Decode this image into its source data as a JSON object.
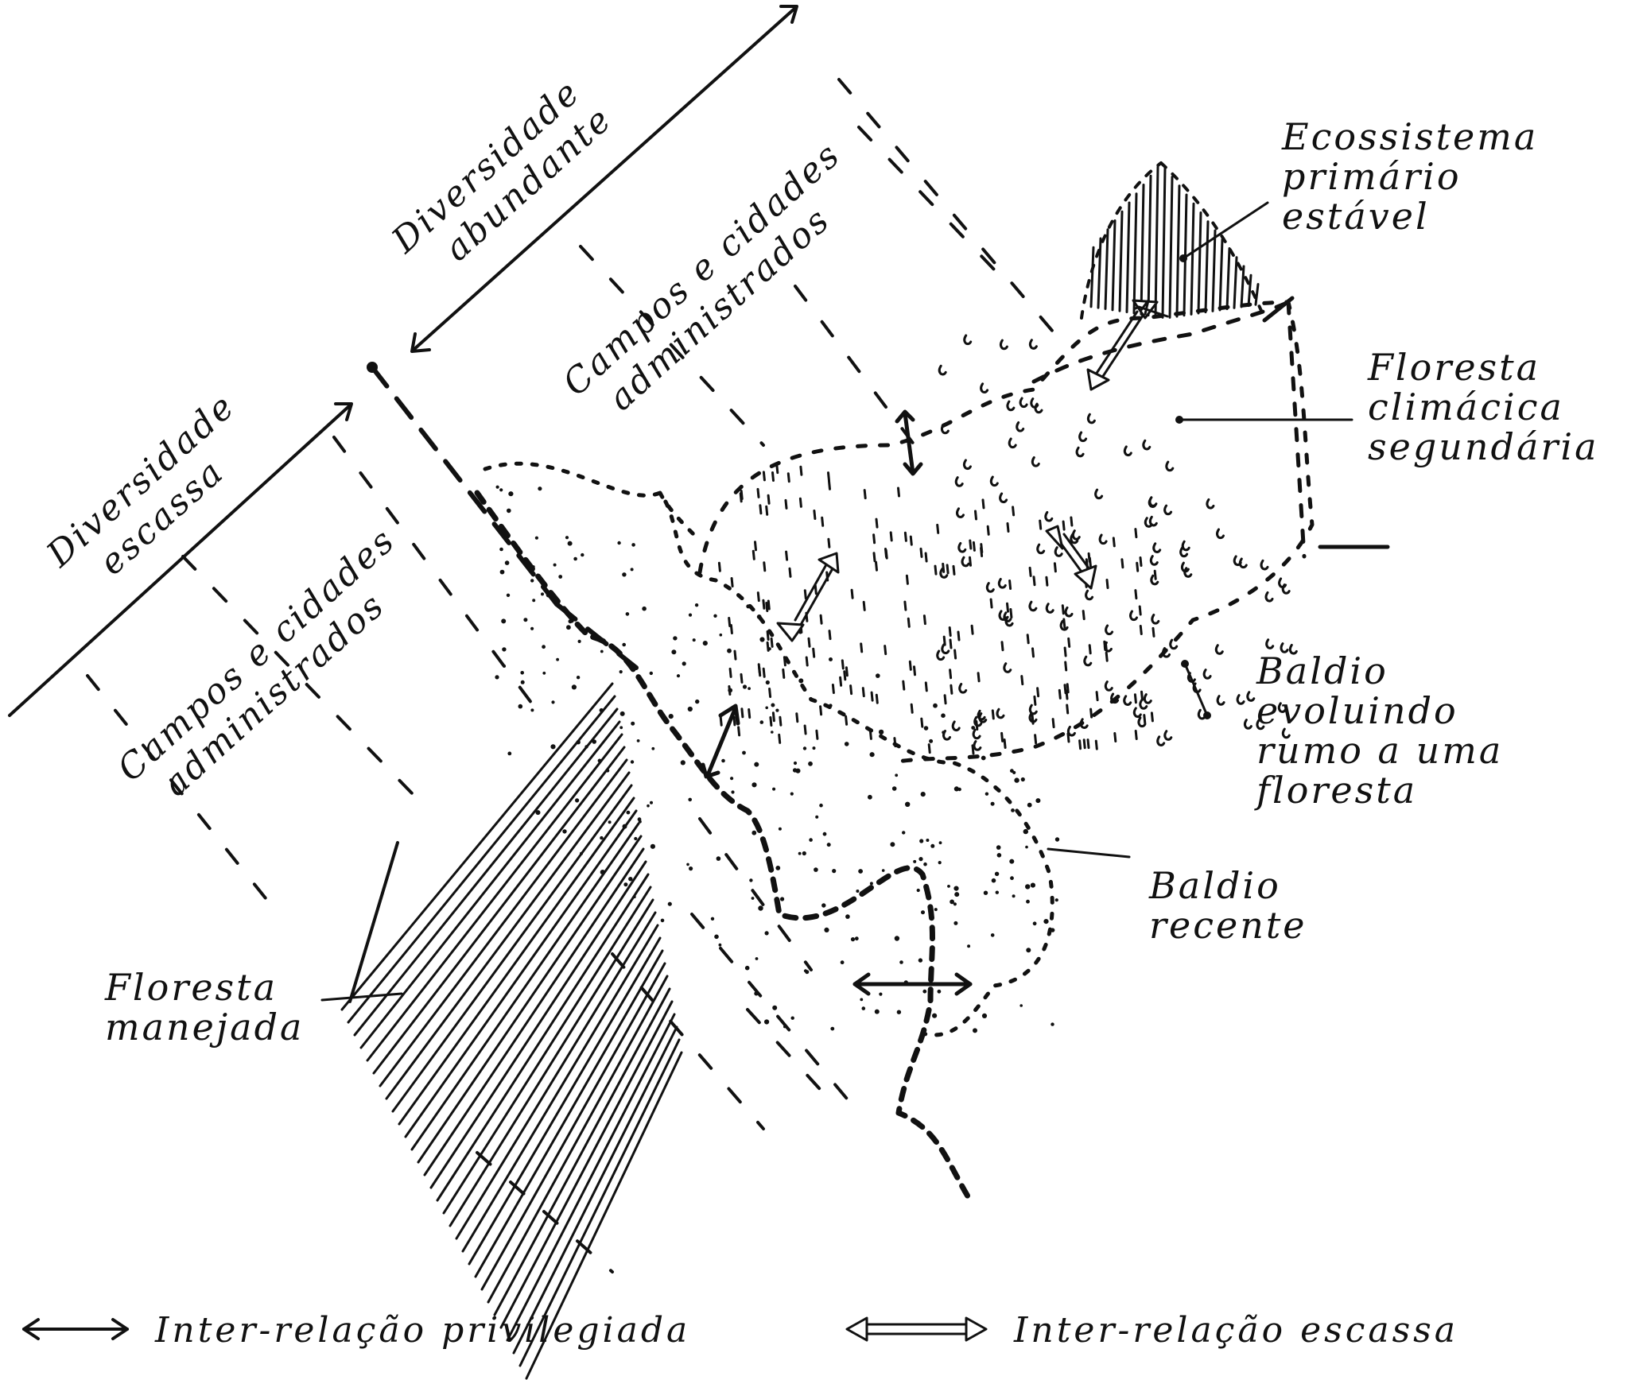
{
  "axes": {
    "diversity_high": [
      "Diversidade",
      "abundante"
    ],
    "diversity_low": [
      "Diversidade",
      "escassa"
    ]
  },
  "zones": {
    "managed_upper": [
      "Campos e cidades",
      "administrados"
    ],
    "managed_lower": [
      "Campos e cidades",
      "administrados"
    ]
  },
  "callouts": {
    "primary_ecosystem": [
      "Ecossistema",
      "primário",
      "estável"
    ],
    "secondary_forest": [
      "Floresta",
      "climácica",
      "segundária"
    ],
    "evolving_wasteland": [
      "Baldio",
      "evoluindo",
      "rumo a uma",
      "floresta"
    ],
    "recent_wasteland": [
      "Baldio",
      "recente"
    ],
    "managed_forest": [
      "Floresta",
      "manejada"
    ]
  },
  "legend": {
    "privileged": "Inter-relação privilegiada",
    "scarce": "Inter-relação escassa"
  },
  "colors": {
    "ink": "#111111",
    "paper": "#ffffff"
  }
}
